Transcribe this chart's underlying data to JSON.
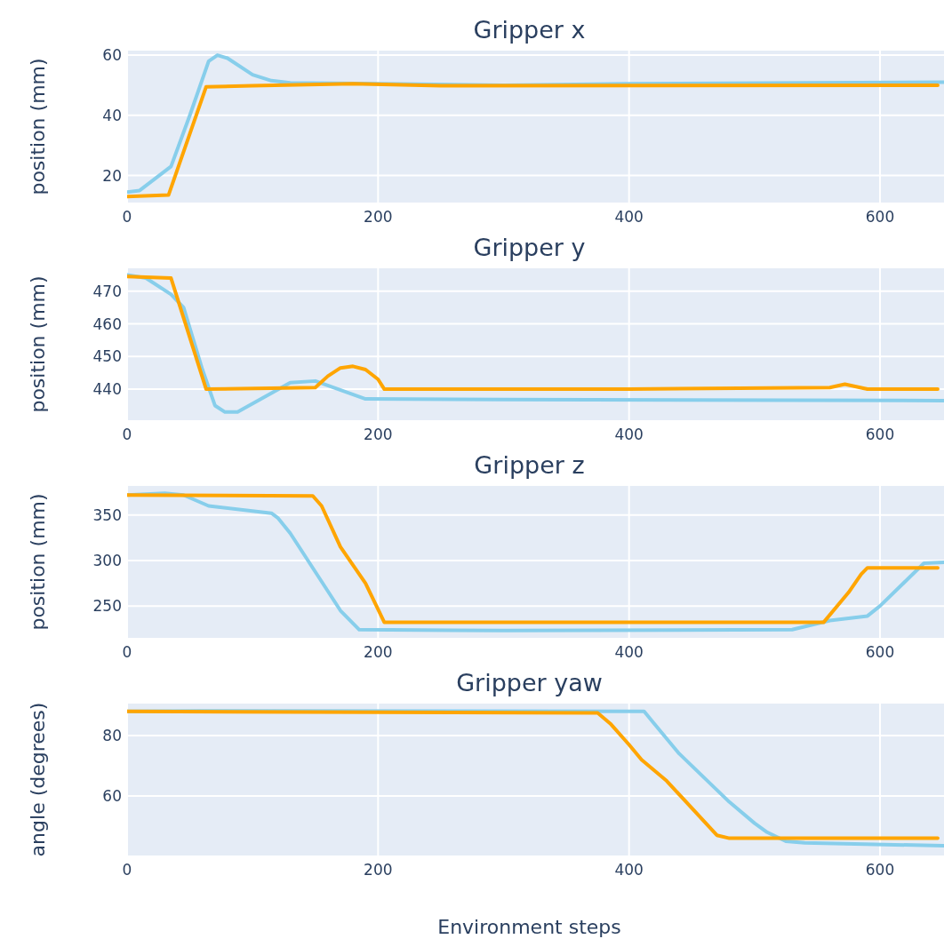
{
  "chart_data": [
    {
      "type": "line",
      "title": "Gripper x",
      "ylabel": "position (mm)",
      "xlim": [
        0,
        651
      ],
      "xticks": [
        0,
        200,
        400,
        600
      ],
      "ylim": [
        11,
        61.5
      ],
      "yticks": [
        20,
        40,
        60
      ],
      "grid": true,
      "series": [
        {
          "color": "#87ceeb",
          "x": [
            0,
            10,
            35,
            50,
            65,
            72,
            80,
            100,
            115,
            130,
            200,
            300,
            400,
            651
          ],
          "values": [
            14.5,
            15,
            23,
            40,
            58,
            60,
            59,
            53.5,
            51.5,
            50.8,
            50.5,
            50,
            50.5,
            51
          ]
        },
        {
          "color": "#ffa500",
          "x": [
            0,
            33,
            63,
            100,
            180,
            250,
            646
          ],
          "values": [
            13,
            13.5,
            49.5,
            49.8,
            50.5,
            49.8,
            50
          ]
        }
      ]
    },
    {
      "type": "line",
      "title": "Gripper y",
      "ylabel": "position (mm)",
      "xlim": [
        0,
        651
      ],
      "xticks": [
        0,
        200,
        400,
        600
      ],
      "ylim": [
        430.5,
        477
      ],
      "yticks": [
        440,
        450,
        460,
        470
      ],
      "grid": true,
      "series": [
        {
          "color": "#87ceeb",
          "x": [
            0,
            15,
            35,
            45,
            60,
            70,
            78,
            88,
            130,
            150,
            190,
            300,
            651
          ],
          "values": [
            475,
            474,
            469,
            465,
            446,
            435,
            433,
            433,
            442,
            442.5,
            437,
            436.8,
            436.5
          ]
        },
        {
          "color": "#ffa500",
          "x": [
            0,
            35,
            63,
            150,
            160,
            170,
            180,
            190,
            200,
            205,
            400,
            560,
            572,
            590,
            646
          ],
          "values": [
            474.5,
            474,
            440,
            440.5,
            444,
            446.5,
            447,
            446,
            443,
            440,
            440,
            440.5,
            441.5,
            440,
            440
          ]
        }
      ]
    },
    {
      "type": "line",
      "title": "Gripper z",
      "ylabel": "position (mm)",
      "xlim": [
        0,
        651
      ],
      "xticks": [
        0,
        200,
        400,
        600
      ],
      "ylim": [
        215,
        382
      ],
      "yticks": [
        250,
        300,
        350
      ],
      "grid": true,
      "series": [
        {
          "color": "#87ceeb",
          "x": [
            0,
            30,
            45,
            65,
            115,
            120,
            130,
            170,
            185,
            300,
            530,
            560,
            590,
            600,
            635,
            651
          ],
          "values": [
            372,
            374,
            372,
            360,
            352,
            347,
            330,
            245,
            224,
            223,
            224,
            234,
            239,
            250,
            297,
            298
          ]
        },
        {
          "color": "#ffa500",
          "x": [
            0,
            148,
            155,
            170,
            190,
            205,
            555,
            575,
            585,
            590,
            646
          ],
          "values": [
            372,
            371,
            360,
            315,
            275,
            232,
            232,
            265,
            285,
            292,
            292
          ]
        }
      ]
    },
    {
      "type": "line",
      "title": "Gripper yaw",
      "ylabel": "angle (degrees)",
      "xlabel": "Environment steps",
      "xlim": [
        0,
        651
      ],
      "xticks": [
        0,
        200,
        400,
        600
      ],
      "ylim": [
        40.3,
        90.6
      ],
      "yticks": [
        60,
        80
      ],
      "grid": true,
      "series": [
        {
          "color": "#87ceeb",
          "x": [
            0,
            60,
            412,
            420,
            440,
            460,
            480,
            500,
            510,
            525,
            540,
            651
          ],
          "values": [
            88,
            88.2,
            88,
            84,
            74,
            66,
            58,
            51,
            48,
            45,
            44.5,
            43.5
          ]
        },
        {
          "color": "#ffa500",
          "x": [
            0,
            375,
            385,
            400,
            410,
            430,
            470,
            480,
            646
          ],
          "values": [
            88,
            87.5,
            84,
            77,
            72,
            65,
            47,
            46,
            46
          ]
        }
      ]
    }
  ]
}
